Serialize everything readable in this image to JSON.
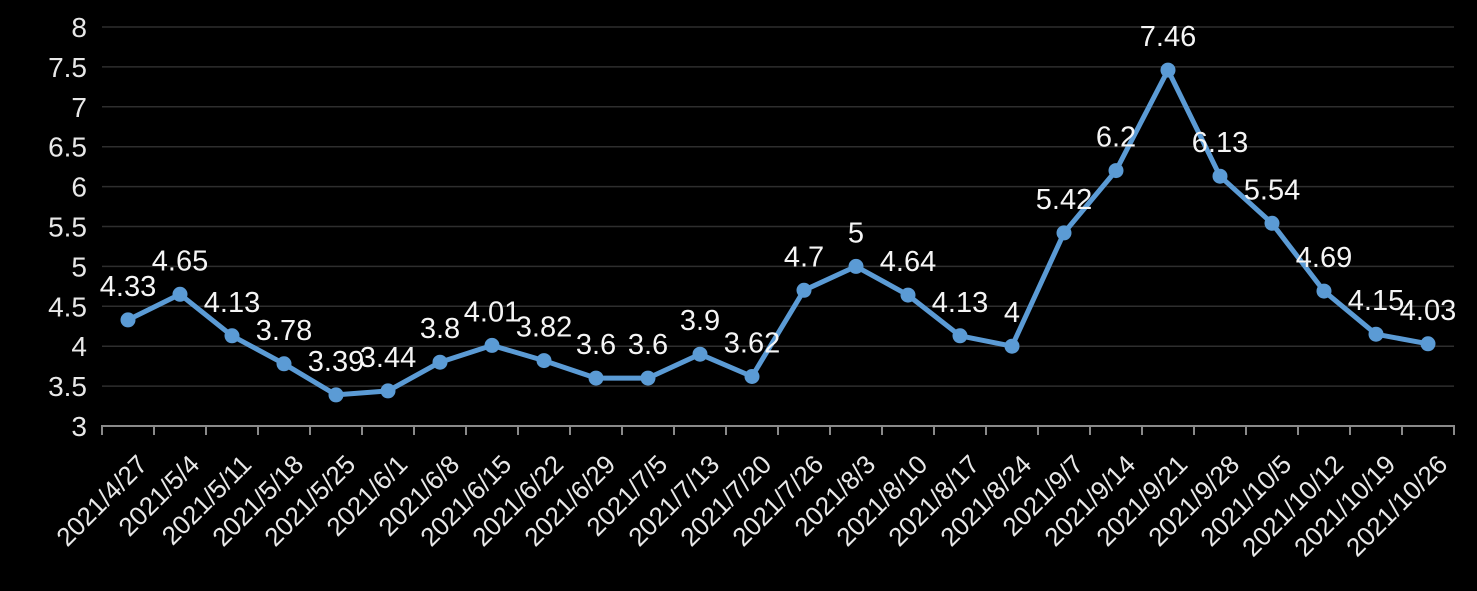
{
  "colors": {
    "background": "#000000",
    "series": "#5B9BD5",
    "grid": "#2E2E2E",
    "axis": "#8A8A8A",
    "axis_text": "#E8E8E8",
    "data_label": "#F5F5F5"
  },
  "chart_data": {
    "type": "line",
    "title": "",
    "xlabel": "",
    "ylabel": "",
    "legend_position": "none",
    "grid": "horizontal",
    "marker": "circle",
    "data_labels_shown": true,
    "x_tick_rotation_deg": 45,
    "ylim": [
      3,
      8
    ],
    "ytick_step": 0.5,
    "ytick_labels": [
      "3",
      "3.5",
      "4",
      "4.5",
      "5",
      "5.5",
      "6",
      "6.5",
      "7",
      "7.5",
      "8"
    ],
    "categories": [
      "2021/4/27",
      "2021/5/4",
      "2021/5/11",
      "2021/5/18",
      "2021/5/25",
      "2021/6/1",
      "2021/6/8",
      "2021/6/15",
      "2021/6/22",
      "2021/6/29",
      "2021/7/5",
      "2021/7/13",
      "2021/7/20",
      "2021/7/26",
      "2021/8/3",
      "2021/8/10",
      "2021/8/17",
      "2021/8/24",
      "2021/9/7",
      "2021/9/14",
      "2021/9/21",
      "2021/9/28",
      "2021/10/5",
      "2021/10/12",
      "2021/10/19",
      "2021/10/26"
    ],
    "series": [
      {
        "name": "",
        "values": [
          4.33,
          4.65,
          4.13,
          3.78,
          3.39,
          3.44,
          3.8,
          4.01,
          3.82,
          3.6,
          3.6,
          3.9,
          3.62,
          4.7,
          5,
          4.64,
          4.13,
          4,
          5.42,
          6.2,
          7.46,
          6.13,
          5.54,
          4.69,
          4.15,
          4.03
        ],
        "data_labels": [
          "4.33",
          "4.65",
          "4.13",
          "3.78",
          "3.39",
          "3.44",
          "3.8",
          "4.01",
          "3.82",
          "3.6",
          "3.6",
          "3.9",
          "3.62",
          "4.7",
          "5",
          "4.64",
          "4.13",
          "4",
          "5.42",
          "6.2",
          "7.46",
          "6.13",
          "5.54",
          "4.69",
          "4.15",
          "4.03"
        ]
      }
    ]
  }
}
